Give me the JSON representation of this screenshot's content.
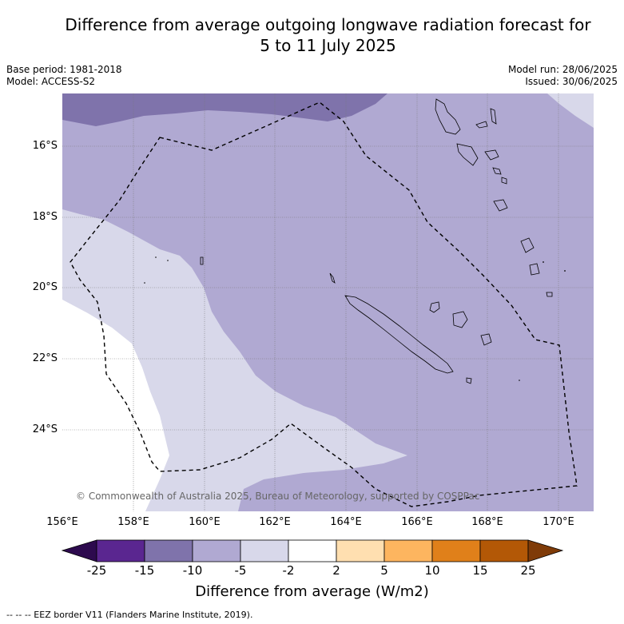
{
  "title_line1": "Difference from average outgoing longwave radiation forecast for",
  "title_line2": "5 to 11 July 2025",
  "base_period": "Base period: 1981-2018",
  "model": "Model: ACCESS-S2",
  "model_run": "Model run: 28/06/2025",
  "issued": "Issued: 30/06/2025",
  "lat_labels": [
    "16°S",
    "18°S",
    "20°S",
    "22°S",
    "24°S"
  ],
  "lon_labels": [
    "156°E",
    "158°E",
    "160°E",
    "162°E",
    "164°E",
    "166°E",
    "168°E",
    "170°E"
  ],
  "copyright": "© Commonwealth of Australia 2025, Bureau of Meteorology, supported by COSPPac",
  "colorbar": {
    "title": "Difference from average (W/m2)",
    "ticks": [
      "-25",
      "-15",
      "-10",
      "-5",
      "-2",
      "2",
      "5",
      "10",
      "15",
      "25"
    ],
    "colors": {
      "below_-25": "#2d0a4e",
      "-25_-15": "#5a2690",
      "-15_-10": "#7f73ab",
      "-10_-5": "#b0a9d2",
      "-5_-2": "#d8d8ea",
      "-2_2": "#ffffff",
      "2_5": "#ffdfb0",
      "5_10": "#fdb55f",
      "10_15": "#e0801a",
      "15_25": "#b35806",
      "above_25": "#7f3b08"
    }
  },
  "legend_note": "--  --  -- EEZ border V11 (Flanders Marine Institute, 2019)."
}
